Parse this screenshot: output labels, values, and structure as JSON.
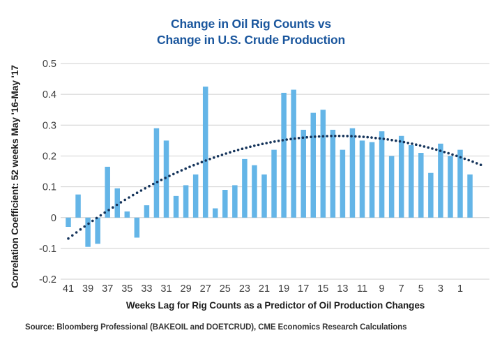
{
  "title": {
    "line1": "Change in Oil Rig Counts vs",
    "line2": "Change in U.S. Crude Production"
  },
  "y_axis_title": "Correlation Coefficient: 52 weeks May '16-May '17",
  "x_axis_title": "Weeks Lag for Rig Counts as a Predictor of Oil Production Changes",
  "source": "Source: Bloomberg Professional (BAKEOIL and DOETCRUD), CME Economics Research Calculations",
  "colors": {
    "title": "#1A569D",
    "bar": "#64B5E7",
    "trend_dot": "#14335A",
    "gridline": "#CFCFCF",
    "tick_label": "#3D3D3D"
  },
  "chart_data": {
    "type": "bar",
    "title": "Change in Oil Rig Counts vs Change in U.S. Crude Production",
    "xlabel": "Weeks Lag for Rig Counts as a Predictor of Oil Production Changes",
    "ylabel": "Correlation Coefficient: 52 weeks May '16-May '17",
    "x": [
      41,
      40,
      39,
      38,
      37,
      36,
      35,
      34,
      33,
      32,
      31,
      30,
      29,
      28,
      27,
      26,
      25,
      24,
      23,
      22,
      21,
      20,
      19,
      18,
      17,
      16,
      15,
      14,
      13,
      12,
      11,
      10,
      9,
      8,
      7,
      6,
      5,
      4,
      3,
      2,
      1,
      0
    ],
    "values": [
      -0.03,
      0.075,
      -0.095,
      -0.085,
      0.165,
      0.095,
      0.02,
      -0.065,
      0.04,
      0.29,
      0.25,
      0.07,
      0.105,
      0.14,
      0.425,
      0.03,
      0.09,
      0.105,
      0.19,
      0.17,
      0.14,
      0.22,
      0.405,
      0.415,
      0.285,
      0.34,
      0.35,
      0.285,
      0.22,
      0.29,
      0.25,
      0.245,
      0.28,
      0.2,
      0.265,
      0.235,
      0.21,
      0.145,
      0.24,
      0.2,
      0.22,
      0.14
    ],
    "xtick_labels": [
      "41",
      "39",
      "37",
      "35",
      "33",
      "31",
      "29",
      "27",
      "25",
      "23",
      "21",
      "19",
      "17",
      "15",
      "13",
      "11",
      "9",
      "7",
      "5",
      "3",
      "1"
    ],
    "yticks": [
      0.5,
      0.4,
      0.3,
      0.2,
      0.1,
      0,
      -0.1,
      -0.2
    ],
    "ytick_labels": [
      "0.5",
      "0.4",
      "0.3",
      "0.2",
      "0.1",
      "0",
      "-0.1",
      "-0.2"
    ],
    "ylim": [
      -0.2,
      0.5
    ],
    "grid": "horizontal",
    "legend": "none",
    "trend": {
      "shape": "quadratic",
      "style": "dotted",
      "peak_week": 13.5,
      "peak_value": 0.265,
      "coeff_a": 0.00044,
      "start_value_week41": -0.065,
      "end_value_week0": 0.185
    }
  }
}
